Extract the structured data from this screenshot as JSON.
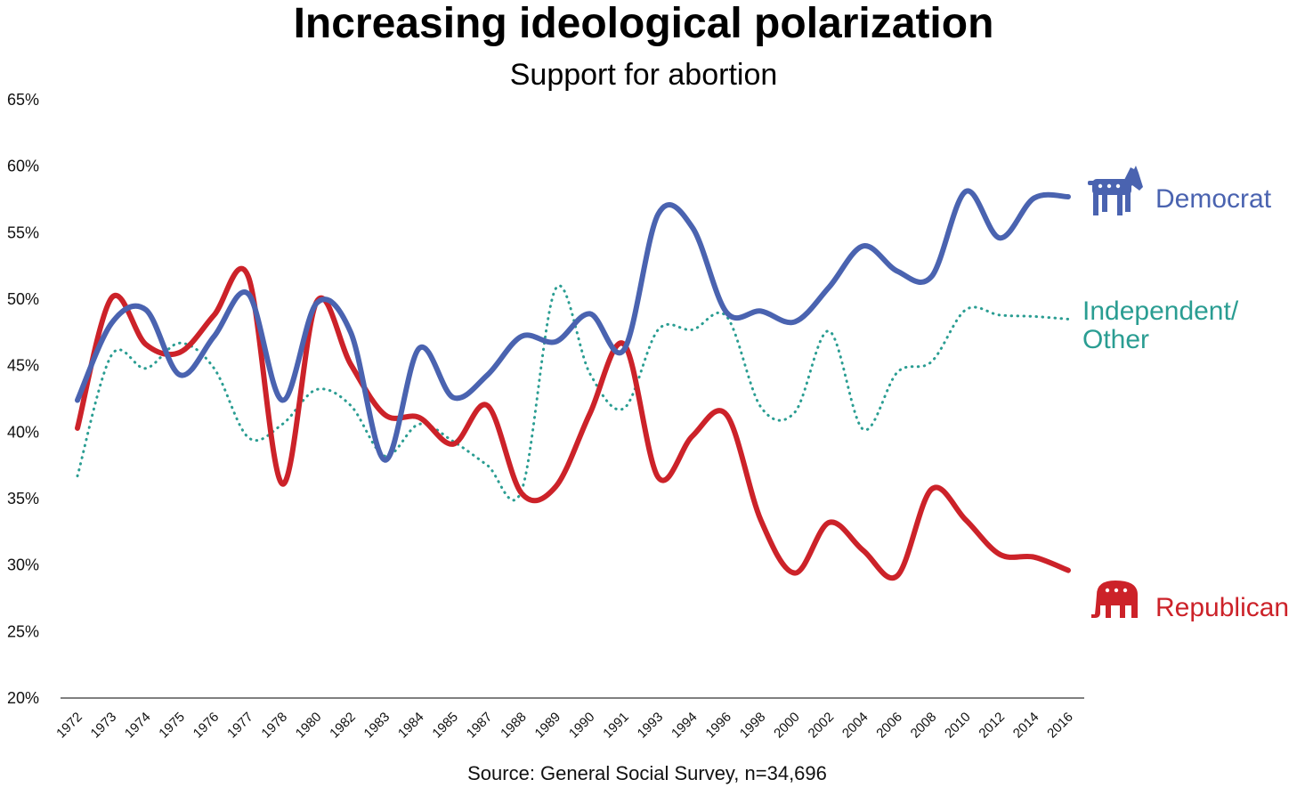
{
  "chart_data": {
    "type": "line",
    "title": "Increasing ideological polarization",
    "subtitle": "Support for abortion",
    "source": "Source: General Social Survey, n=34,696",
    "x": [
      "1972",
      "1973",
      "1974",
      "1975",
      "1976",
      "1977",
      "1978",
      "1980",
      "1982",
      "1983",
      "1984",
      "1985",
      "1987",
      "1988",
      "1989",
      "1990",
      "1991",
      "1993",
      "1994",
      "1996",
      "1998",
      "2000",
      "2002",
      "2004",
      "2006",
      "2008",
      "2010",
      "2012",
      "2014",
      "2016"
    ],
    "ylim": [
      20,
      65
    ],
    "yticks": [
      "20%",
      "25%",
      "30%",
      "35%",
      "40%",
      "45%",
      "50%",
      "55%",
      "60%",
      "65%"
    ],
    "grid": false,
    "series": [
      {
        "name": "Democrat",
        "color": "#4a63b0",
        "style": "solid",
        "icon": "donkey-icon",
        "values": [
          42.4,
          48.2,
          49.2,
          44.3,
          47.2,
          50.4,
          42.4,
          49.7,
          47.5,
          37.9,
          46.3,
          42.6,
          44.3,
          47.2,
          46.8,
          48.9,
          46.2,
          56.4,
          55.4,
          49.0,
          49.1,
          48.3,
          50.9,
          54.0,
          52.1,
          51.7,
          58.1,
          54.6,
          57.6,
          57.7
        ]
      },
      {
        "name": "Independent/ Other",
        "label_lines": [
          "Independent/",
          "Other"
        ],
        "color": "#2a9d92",
        "style": "dotted",
        "values": [
          36.7,
          45.8,
          44.8,
          46.7,
          44.8,
          39.6,
          40.6,
          43.2,
          42.0,
          38.2,
          40.6,
          39.3,
          37.5,
          35.6,
          50.8,
          44.4,
          41.8,
          47.7,
          47.7,
          48.7,
          41.9,
          41.5,
          47.6,
          40.2,
          44.5,
          45.3,
          49.2,
          48.8,
          48.7,
          48.5
        ]
      },
      {
        "name": "Republican",
        "color": "#cc2229",
        "style": "solid",
        "icon": "elephant-icon",
        "values": [
          40.3,
          50.1,
          46.6,
          46.0,
          48.8,
          51.7,
          36.1,
          49.8,
          45.1,
          41.3,
          41.1,
          39.1,
          42.0,
          35.4,
          35.9,
          41.4,
          46.6,
          36.6,
          39.7,
          41.3,
          33.4,
          29.4,
          33.2,
          31.1,
          29.2,
          35.7,
          33.4,
          30.8,
          30.6,
          29.6
        ]
      }
    ]
  }
}
